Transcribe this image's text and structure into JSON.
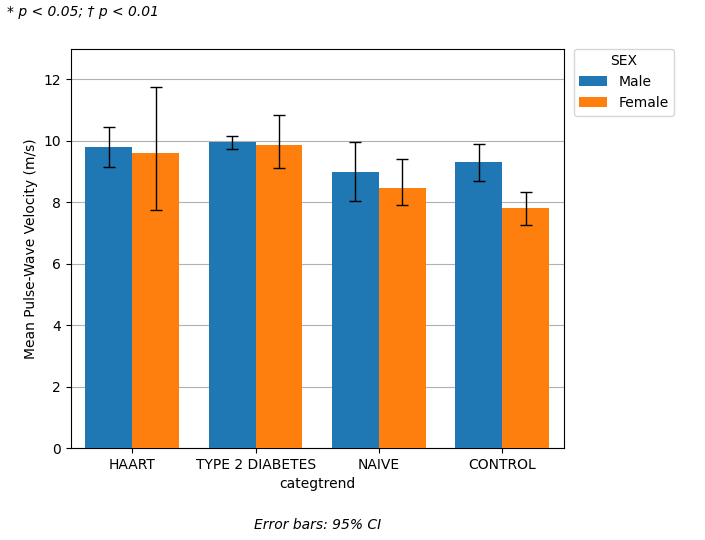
{
  "chart_data": {
    "type": "bar",
    "categories": [
      "HAART",
      "TYPE 2 DIABETES",
      "NAIVE",
      "CONTROL"
    ],
    "series": [
      {
        "name": "Male",
        "values": [
          9.8,
          9.95,
          9.0,
          9.3
        ],
        "error_lo": [
          0.65,
          0.22,
          0.95,
          0.6
        ],
        "error_hi": [
          0.65,
          0.22,
          0.95,
          0.6
        ]
      },
      {
        "name": "Female",
        "values": [
          9.6,
          9.85,
          8.45,
          7.8
        ],
        "error_lo": [
          1.85,
          0.72,
          0.55,
          0.55
        ],
        "error_hi": [
          2.15,
          1.0,
          0.95,
          0.55
        ]
      }
    ],
    "xlabel": "categtrend",
    "ylabel": "Mean Pulse-Wave Velocity (m/s)",
    "ylim": [
      0,
      13
    ],
    "yticks": [
      0,
      2,
      4,
      6,
      8,
      10,
      12
    ],
    "grid": true,
    "legend": "right",
    "legend_title": "SEX",
    "annotations": [
      "* p < 0.05; † p < 0.01",
      "Error bars: 95% CI"
    ]
  }
}
